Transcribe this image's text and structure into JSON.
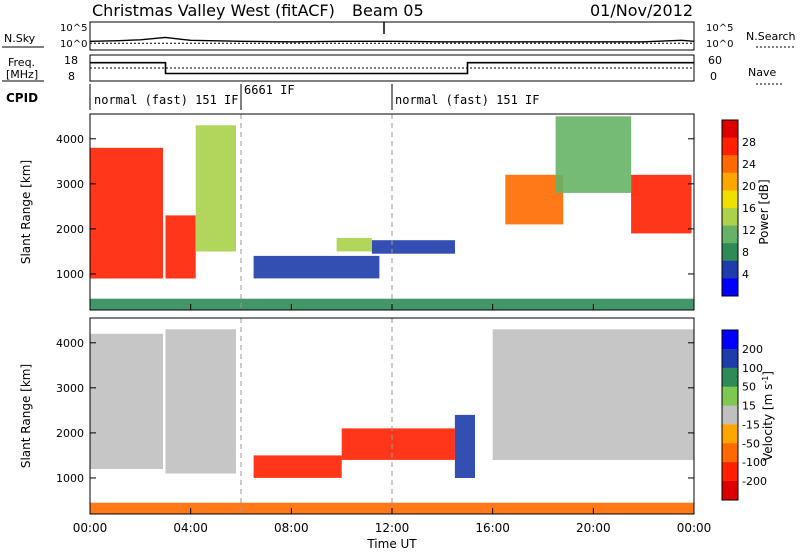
{
  "header": {
    "title": "Christmas Valley West (fitACF)",
    "beam": "Beam 05",
    "date": "01/Nov/2012"
  },
  "colors": {
    "panel_bg": "#ffffff",
    "ground_scatter": "#c0c0c0",
    "axis": "#000000"
  },
  "chart_data": [
    {
      "type": "line",
      "panel": "noise",
      "left_label": "N.Sky",
      "right_label": "N.Search",
      "left_ticks": [
        "10^5",
        "10^0"
      ],
      "right_ticks": [
        "10^5",
        "10^0"
      ],
      "x": [
        0,
        1,
        2,
        3,
        3.5,
        4,
        6,
        8,
        10,
        12,
        14,
        16,
        18,
        20,
        22,
        23.5,
        24
      ],
      "series": [
        {
          "name": "N.Sky",
          "values": [
            1.4,
            1.5,
            1.7,
            2.2,
            1.9,
            1.6,
            1.4,
            1.3,
            1.4,
            1.4,
            1.3,
            1.3,
            1.3,
            1.3,
            1.3,
            1.6,
            1.4
          ]
        },
        {
          "name": "N.Search",
          "values": [
            1.0,
            1.0,
            1.0,
            1.0,
            1.0,
            1.0,
            1.0,
            1.0,
            1.0,
            1.0,
            1.0,
            1.0,
            1.0,
            1.0,
            1.0,
            1.0,
            1.0
          ]
        }
      ]
    },
    {
      "type": "line",
      "panel": "frequency",
      "left_label": "Freq.",
      "left_unit": "[MHz]",
      "right_label": "Nave",
      "left_ticks": [
        18,
        8
      ],
      "right_ticks": [
        60,
        0
      ],
      "x": [
        0,
        3,
        3,
        15,
        15,
        24
      ],
      "series": [
        {
          "name": "Freq.",
          "values": [
            14.5,
            14.5,
            9.6,
            9.6,
            14.5,
            14.5
          ]
        },
        {
          "name": "Nave",
          "values": [
            30,
            30,
            30,
            30,
            30,
            30
          ]
        }
      ]
    },
    {
      "type": "table",
      "panel": "cpid",
      "label": "CPID",
      "segments": [
        {
          "start": 0,
          "end": 6,
          "text": "normal (fast) 151 IF"
        },
        {
          "start": 6,
          "end": 12,
          "text": "6661 IF"
        },
        {
          "start": 12,
          "end": 24,
          "text": "normal (fast) 151 IF"
        }
      ]
    },
    {
      "type": "heatmap",
      "panel": "power",
      "ylabel": "Slant Range [km]",
      "yticks": [
        1000,
        2000,
        3000,
        4000
      ],
      "ylim": [
        200,
        4550
      ],
      "xlim": [
        0,
        24
      ],
      "colorbar": {
        "label": "Power [dB]",
        "ticks": [
          "28",
          "24",
          "20",
          "16",
          "12",
          "8",
          "4"
        ],
        "range": [
          0,
          32
        ],
        "colors": [
          "#0000ff",
          "#1e3caa",
          "#2e8b57",
          "#66b266",
          "#aad24a",
          "#f0e000",
          "#ffa500",
          "#ff6a00",
          "#ff2000",
          "#dd0000"
        ]
      },
      "regions": [
        {
          "x": [
            0.0,
            2.9
          ],
          "r": [
            900,
            3800
          ],
          "value": 28
        },
        {
          "x": [
            3.0,
            4.2
          ],
          "r": [
            900,
            2300
          ],
          "value": 26
        },
        {
          "x": [
            4.2,
            5.8
          ],
          "r": [
            1500,
            4300
          ],
          "value": 14
        },
        {
          "x": [
            6.5,
            11.5
          ],
          "r": [
            900,
            1400
          ],
          "value": 6
        },
        {
          "x": [
            9.8,
            11.2
          ],
          "r": [
            1500,
            1800
          ],
          "value": 15
        },
        {
          "x": [
            11.2,
            14.5
          ],
          "r": [
            1450,
            1750
          ],
          "value": 5
        },
        {
          "x": [
            16.5,
            18.8
          ],
          "r": [
            2100,
            3200
          ],
          "value": 24
        },
        {
          "x": [
            18.5,
            21.5
          ],
          "r": [
            2800,
            4500
          ],
          "value": 12
        },
        {
          "x": [
            21.5,
            23.9
          ],
          "r": [
            1900,
            3200
          ],
          "value": 27
        },
        {
          "x": [
            0.0,
            24.0
          ],
          "r": [
            200,
            450
          ],
          "value": 8
        }
      ]
    },
    {
      "type": "heatmap",
      "panel": "velocity",
      "ylabel": "Slant Range [km]",
      "xlabel": "Time UT",
      "yticks": [
        1000,
        2000,
        3000,
        4000
      ],
      "ylim": [
        200,
        4550
      ],
      "xlim": [
        0,
        24
      ],
      "xticks": [
        "00:00",
        "04:00",
        "08:00",
        "12:00",
        "16:00",
        "20:00",
        "00:00"
      ],
      "colorbar": {
        "label": "Velocity [m s^-1]",
        "ticks": [
          "200",
          "100",
          "50",
          "15",
          "-15",
          "-50",
          "-100",
          "-200"
        ],
        "colors": [
          "#0000ff",
          "#1e3caa",
          "#2e8b57",
          "#7cc850",
          "#c0c0c0",
          "#ffa500",
          "#ff6a00",
          "#ff2000",
          "#dd0000"
        ]
      },
      "regions": [
        {
          "x": [
            0.0,
            2.9
          ],
          "r": [
            1200,
            4200
          ],
          "value": "ground scatter"
        },
        {
          "x": [
            3.0,
            5.8
          ],
          "r": [
            1100,
            4300
          ],
          "value": "ground scatter"
        },
        {
          "x": [
            6.5,
            10.0
          ],
          "r": [
            1000,
            1500
          ],
          "value": -120
        },
        {
          "x": [
            10.0,
            14.5
          ],
          "r": [
            1400,
            2100
          ],
          "value": -200
        },
        {
          "x": [
            16.0,
            24.0
          ],
          "r": [
            1400,
            4300
          ],
          "value": "ground scatter"
        },
        {
          "x": [
            14.5,
            15.3
          ],
          "r": [
            1000,
            2400
          ],
          "value": 150
        },
        {
          "x": [
            0.0,
            24.0
          ],
          "r": [
            200,
            450
          ],
          "value": -60
        }
      ]
    }
  ]
}
